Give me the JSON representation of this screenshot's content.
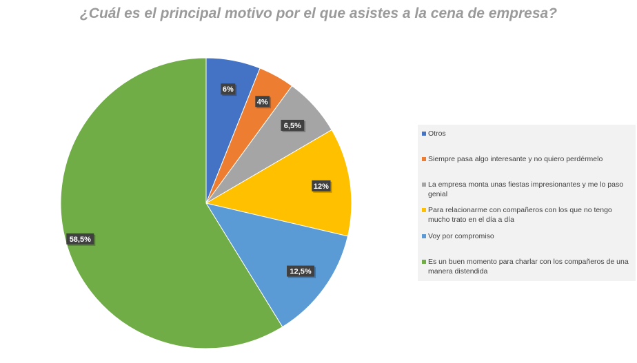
{
  "title": "¿Cuál es el principal motivo por el que asistes a la cena de empresa?",
  "chart_data": {
    "type": "pie",
    "title": "¿Cuál es el principal motivo por el que asistes a la cena de empresa?",
    "legend_position": "right",
    "slices": [
      {
        "name": "Otros",
        "value": 6,
        "label": "6%",
        "color": "#4472c4"
      },
      {
        "name": "Siempre pasa algo interesante y no quiero perdérmelo",
        "value": 4,
        "label": "4%",
        "color": "#ed7d31"
      },
      {
        "name": "La empresa monta unas fiestas impresionantes y me lo paso genial",
        "value": 6.5,
        "label": "6,5%",
        "color": "#a5a5a5"
      },
      {
        "name": "Para relacionarme con compañeros con los que no tengo mucho trato en el día a día",
        "value": 12,
        "label": "12%",
        "color": "#ffc000"
      },
      {
        "name": "Voy por compromiso",
        "value": 12.5,
        "label": "12,5%",
        "color": "#5b9bd5"
      },
      {
        "name": "Es un buen momento para charlar con los compañeros de una manera distendida",
        "value": 58.5,
        "label": "58,5%",
        "color": "#70ad47"
      }
    ]
  }
}
